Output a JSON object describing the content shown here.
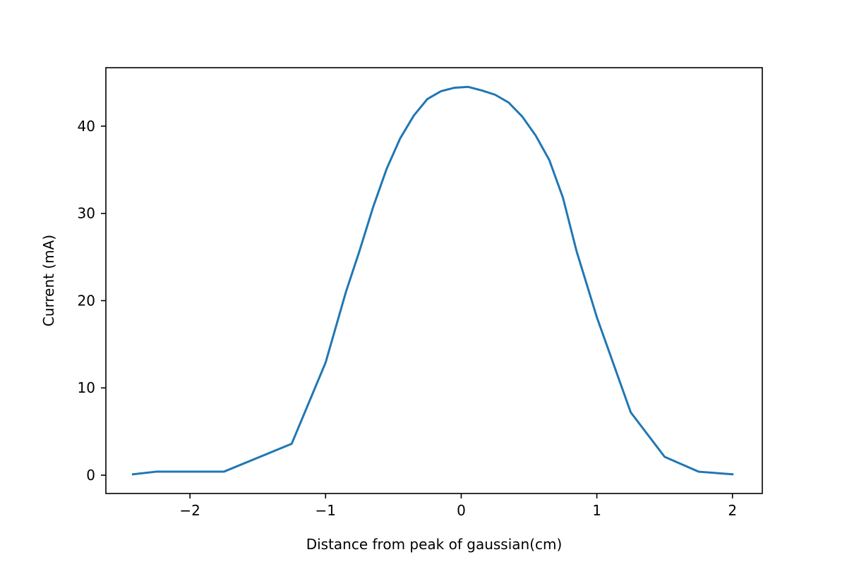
{
  "chart_data": {
    "type": "line",
    "title": "",
    "xlabel": "Distance from peak of gaussian(cm)",
    "ylabel": "Current (mA)",
    "xlim": [
      -2.62,
      2.22
    ],
    "ylim": [
      -2.1,
      46.7
    ],
    "xticks": [
      -2,
      -1,
      0,
      1,
      2
    ],
    "xtick_labels": [
      "−2",
      "−1",
      "0",
      "1",
      "2"
    ],
    "yticks": [
      0,
      10,
      20,
      30,
      40
    ],
    "ytick_labels": [
      "0",
      "10",
      "20",
      "30",
      "40"
    ],
    "grid": false,
    "legend": false,
    "series": [
      {
        "color": "#1f77b4",
        "x": [
          -2.42,
          -2.25,
          -2.0,
          -1.75,
          -1.5,
          -1.25,
          -1.0,
          -0.85,
          -0.75,
          -0.65,
          -0.55,
          -0.45,
          -0.35,
          -0.25,
          -0.15,
          -0.05,
          0.05,
          0.15,
          0.25,
          0.35,
          0.45,
          0.55,
          0.65,
          0.75,
          0.85,
          1.0,
          1.25,
          1.5,
          1.75,
          2.0
        ],
        "y": [
          0.1,
          0.4,
          0.4,
          0.4,
          2.0,
          3.6,
          12.9,
          21.0,
          25.7,
          30.7,
          35.1,
          38.6,
          41.2,
          43.1,
          44.0,
          44.4,
          44.5,
          44.1,
          43.6,
          42.7,
          41.1,
          38.9,
          36.1,
          31.8,
          25.7,
          18.1,
          7.2,
          2.1,
          0.4,
          0.1
        ]
      }
    ]
  }
}
